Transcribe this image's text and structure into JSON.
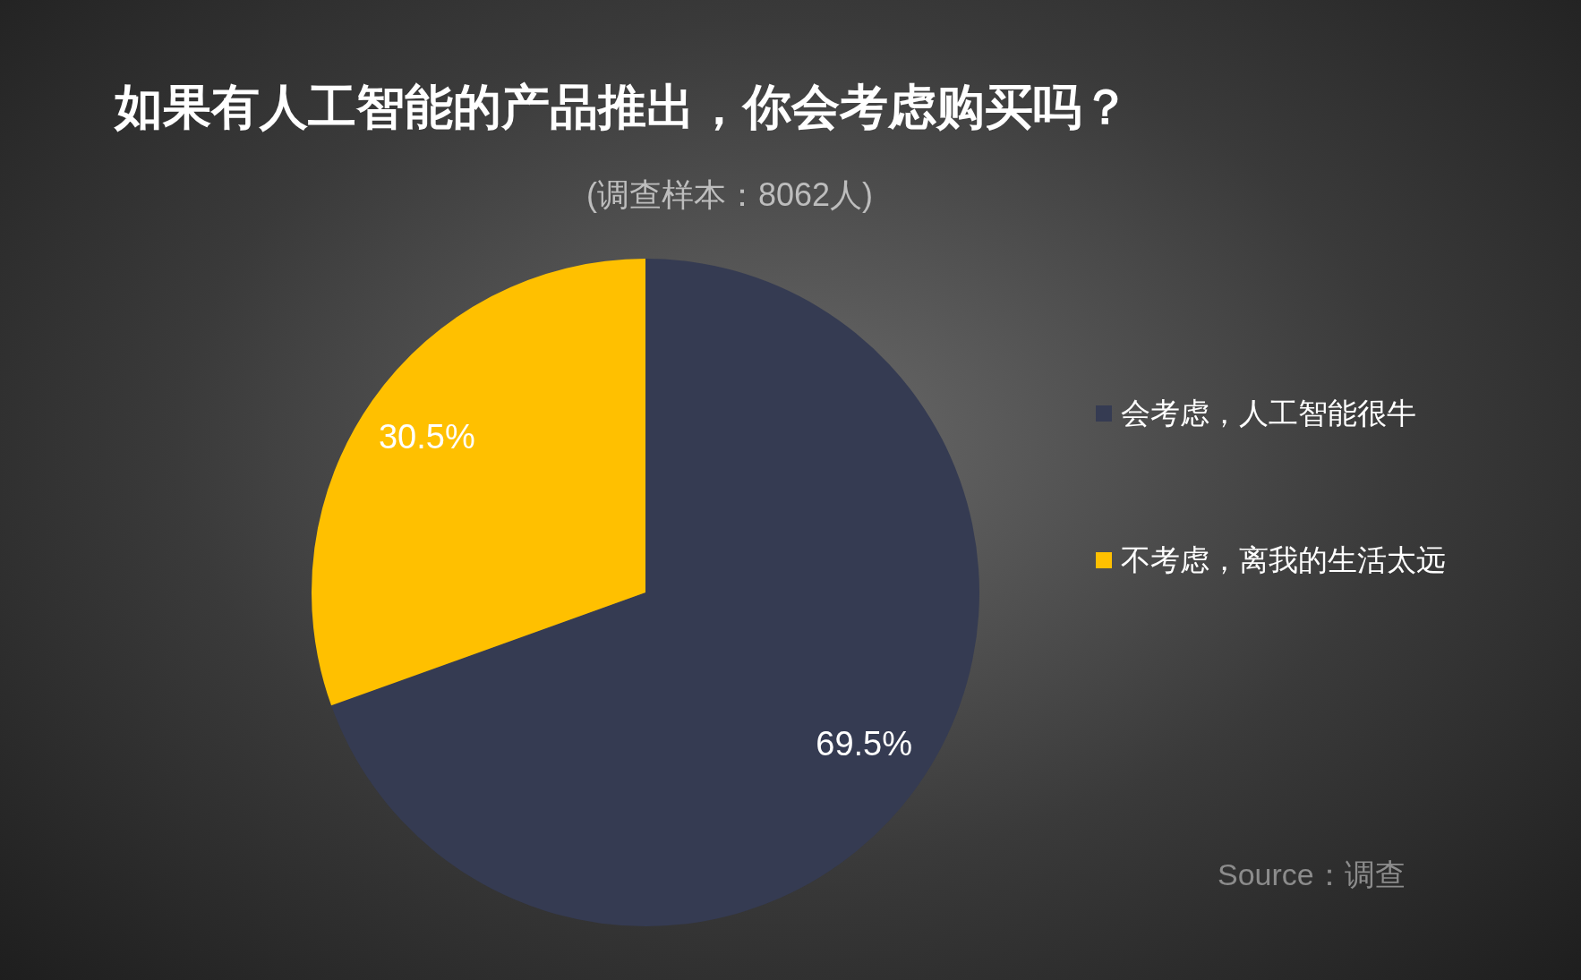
{
  "chart_data": {
    "type": "pie",
    "title": "如果有人工智能的产品推出，你会考虑购买吗？",
    "subtitle": "(调查样本：8062人)",
    "categories": [
      "会考虑，人工智能很牛",
      "不考虑，离我的生活太远"
    ],
    "values": [
      69.5,
      30.5
    ],
    "colors": [
      "#353b52",
      "#ffc000"
    ],
    "value_labels": [
      "69.5%",
      "30.5%"
    ],
    "legend": "right",
    "annotations": [
      "Source：调查"
    ]
  }
}
